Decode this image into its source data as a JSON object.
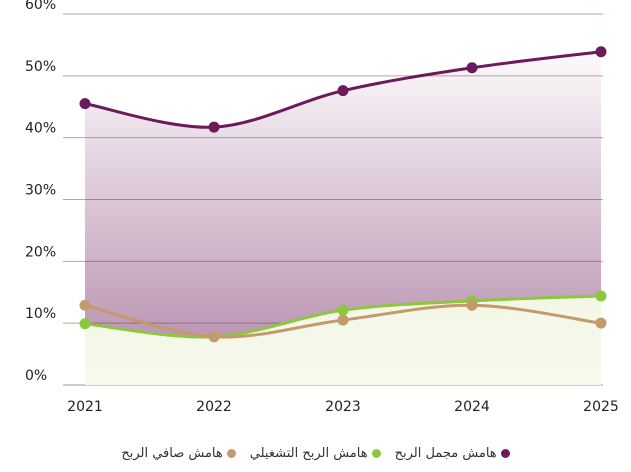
{
  "chart_data": {
    "type": "line",
    "categories": [
      "2021",
      "2022",
      "2023",
      "2024",
      "2025"
    ],
    "series": [
      {
        "name": "هامش مجمل الربح",
        "color": "#6b1a5a",
        "values": [
          45.5,
          41.7,
          47.6,
          51.3,
          53.9
        ]
      },
      {
        "name": "هامش الربح التشغيلي",
        "color": "#8dc63f",
        "values": [
          9.9,
          7.8,
          12.1,
          13.6,
          14.4
        ]
      },
      {
        "name": "هامش صافي الربح",
        "color": "#c49a6c",
        "values": [
          12.9,
          7.8,
          10.5,
          12.9,
          10.0
        ]
      }
    ],
    "ylim": [
      0,
      60
    ],
    "yticks": [
      {
        "value": 0,
        "label": "0%"
      },
      {
        "value": 10,
        "label": "10%"
      },
      {
        "value": 20,
        "label": "20%"
      },
      {
        "value": 30,
        "label": "30%"
      },
      {
        "value": 40,
        "label": "40%"
      },
      {
        "value": 50,
        "label": "50%"
      },
      {
        "value": 60,
        "label": "60%"
      }
    ],
    "grid": true
  }
}
